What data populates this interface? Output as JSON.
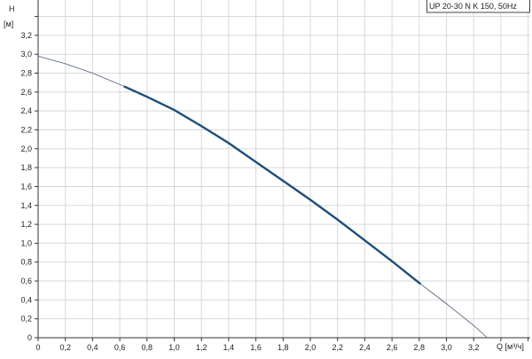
{
  "chart_data": {
    "type": "line",
    "title": "",
    "legend": "UP 20-30 N K 150, 50Hz",
    "legend_position": "top-right",
    "xlabel": "Q [м³/ч]",
    "ylabel_name": "H",
    "ylabel_unit": "[м]",
    "xlim": [
      0,
      3.6
    ],
    "ylim": [
      0,
      3.4
    ],
    "grid": true,
    "x_ticks": [
      "0",
      "0,2",
      "0,4",
      "0,6",
      "0,8",
      "1,0",
      "1,2",
      "1,4",
      "1,6",
      "1,8",
      "2,0",
      "2,2",
      "2,4",
      "2,6",
      "2,8",
      "3,0",
      "3,2"
    ],
    "y_ticks": [
      "0",
      "0,2",
      "0,4",
      "0,6",
      "0,8",
      "1,0",
      "1,2",
      "1,4",
      "1,6",
      "1,8",
      "2,0",
      "2,2",
      "2,4",
      "2,6",
      "2,8",
      "3,0",
      "3,2"
    ],
    "series": [
      {
        "color": "#1f4e79",
        "x": [
          0,
          0.2,
          0.4,
          0.6,
          0.8,
          1.0,
          1.2,
          1.4,
          1.6,
          1.8,
          2.0,
          2.2,
          2.4,
          2.6,
          2.8,
          3.0,
          3.2,
          3.3
        ],
        "y": [
          2.98,
          2.9,
          2.8,
          2.68,
          2.55,
          2.41,
          2.24,
          2.06,
          1.86,
          1.66,
          1.46,
          1.25,
          1.03,
          0.81,
          0.58,
          0.36,
          0.13,
          0.0
        ],
        "thick_range": [
          0.63,
          2.81
        ]
      }
    ]
  }
}
